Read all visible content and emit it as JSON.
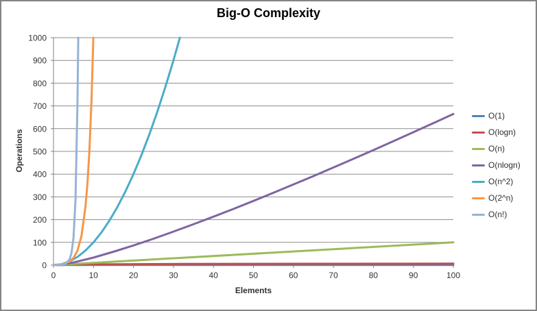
{
  "window": {
    "background": "#FFFFFF",
    "border_color": "#848484"
  },
  "chart_data": {
    "type": "line",
    "title": "Big-O Complexity",
    "xlabel": "Elements",
    "ylabel": "Operations",
    "xlim": [
      0,
      100
    ],
    "ylim": [
      0,
      1000
    ],
    "x_ticks": [
      0,
      10,
      20,
      30,
      40,
      50,
      60,
      70,
      80,
      90,
      100
    ],
    "y_ticks": [
      0,
      100,
      200,
      300,
      400,
      500,
      600,
      700,
      800,
      900,
      1000
    ],
    "grid": "horizontal-only",
    "legend_position": "right",
    "colors": {
      "gridline": "#8C8C8C",
      "axis": "#808080",
      "tick_text": "#333333",
      "title_text": "#000000"
    },
    "series": [
      {
        "name": "O(1)",
        "color": "#4F81BD",
        "points": [
          [
            0,
            1
          ],
          [
            100,
            1
          ]
        ]
      },
      {
        "name": "O(logn)",
        "color": "#C0504D",
        "points": [
          [
            1,
            0
          ],
          [
            2,
            1
          ],
          [
            4,
            2
          ],
          [
            8,
            3
          ],
          [
            16,
            4
          ],
          [
            32,
            5
          ],
          [
            64,
            6
          ],
          [
            100,
            6.64
          ]
        ]
      },
      {
        "name": "O(n)",
        "color": "#9BBB59",
        "points": [
          [
            0,
            0
          ],
          [
            100,
            100
          ]
        ]
      },
      {
        "name": "O(nlogn)",
        "color": "#8064A2",
        "points": [
          [
            1,
            0
          ],
          [
            5,
            11.6
          ],
          [
            10,
            33.2
          ],
          [
            15,
            58.6
          ],
          [
            20,
            86.4
          ],
          [
            25,
            116.1
          ],
          [
            30,
            147.2
          ],
          [
            35,
            179.5
          ],
          [
            40,
            212.9
          ],
          [
            45,
            247.1
          ],
          [
            50,
            282.2
          ],
          [
            55,
            318.0
          ],
          [
            60,
            354.4
          ],
          [
            65,
            391.4
          ],
          [
            70,
            429.1
          ],
          [
            75,
            467.2
          ],
          [
            80,
            505.8
          ],
          [
            85,
            544.8
          ],
          [
            90,
            584.3
          ],
          [
            95,
            624.1
          ],
          [
            100,
            664.4
          ]
        ]
      },
      {
        "name": "O(n^2)",
        "color": "#4BACC6",
        "points": [
          [
            0,
            0
          ],
          [
            2,
            4
          ],
          [
            4,
            16
          ],
          [
            6,
            36
          ],
          [
            8,
            64
          ],
          [
            10,
            100
          ],
          [
            12,
            144
          ],
          [
            14,
            196
          ],
          [
            16,
            256
          ],
          [
            18,
            324
          ],
          [
            20,
            400
          ],
          [
            22,
            484
          ],
          [
            24,
            576
          ],
          [
            26,
            676
          ],
          [
            28,
            784
          ],
          [
            30,
            900
          ],
          [
            31.62,
            1000
          ]
        ]
      },
      {
        "name": "O(2^n)",
        "color": "#F79646",
        "points": [
          [
            0,
            1
          ],
          [
            1,
            2
          ],
          [
            2,
            4
          ],
          [
            3,
            8
          ],
          [
            4,
            16
          ],
          [
            5,
            32
          ],
          [
            6,
            64
          ],
          [
            7,
            128
          ],
          [
            8,
            256
          ],
          [
            8.5,
            362
          ],
          [
            9,
            512
          ],
          [
            9.5,
            724
          ],
          [
            9.97,
            1000
          ]
        ]
      },
      {
        "name": "O(n!)",
        "color": "#95B3D7",
        "points": [
          [
            0,
            1
          ],
          [
            1,
            1
          ],
          [
            2,
            2
          ],
          [
            3,
            6
          ],
          [
            4,
            24
          ],
          [
            4.5,
            52
          ],
          [
            5,
            120
          ],
          [
            5.5,
            288
          ],
          [
            6,
            720
          ],
          [
            6.2,
            1000
          ]
        ]
      }
    ]
  }
}
